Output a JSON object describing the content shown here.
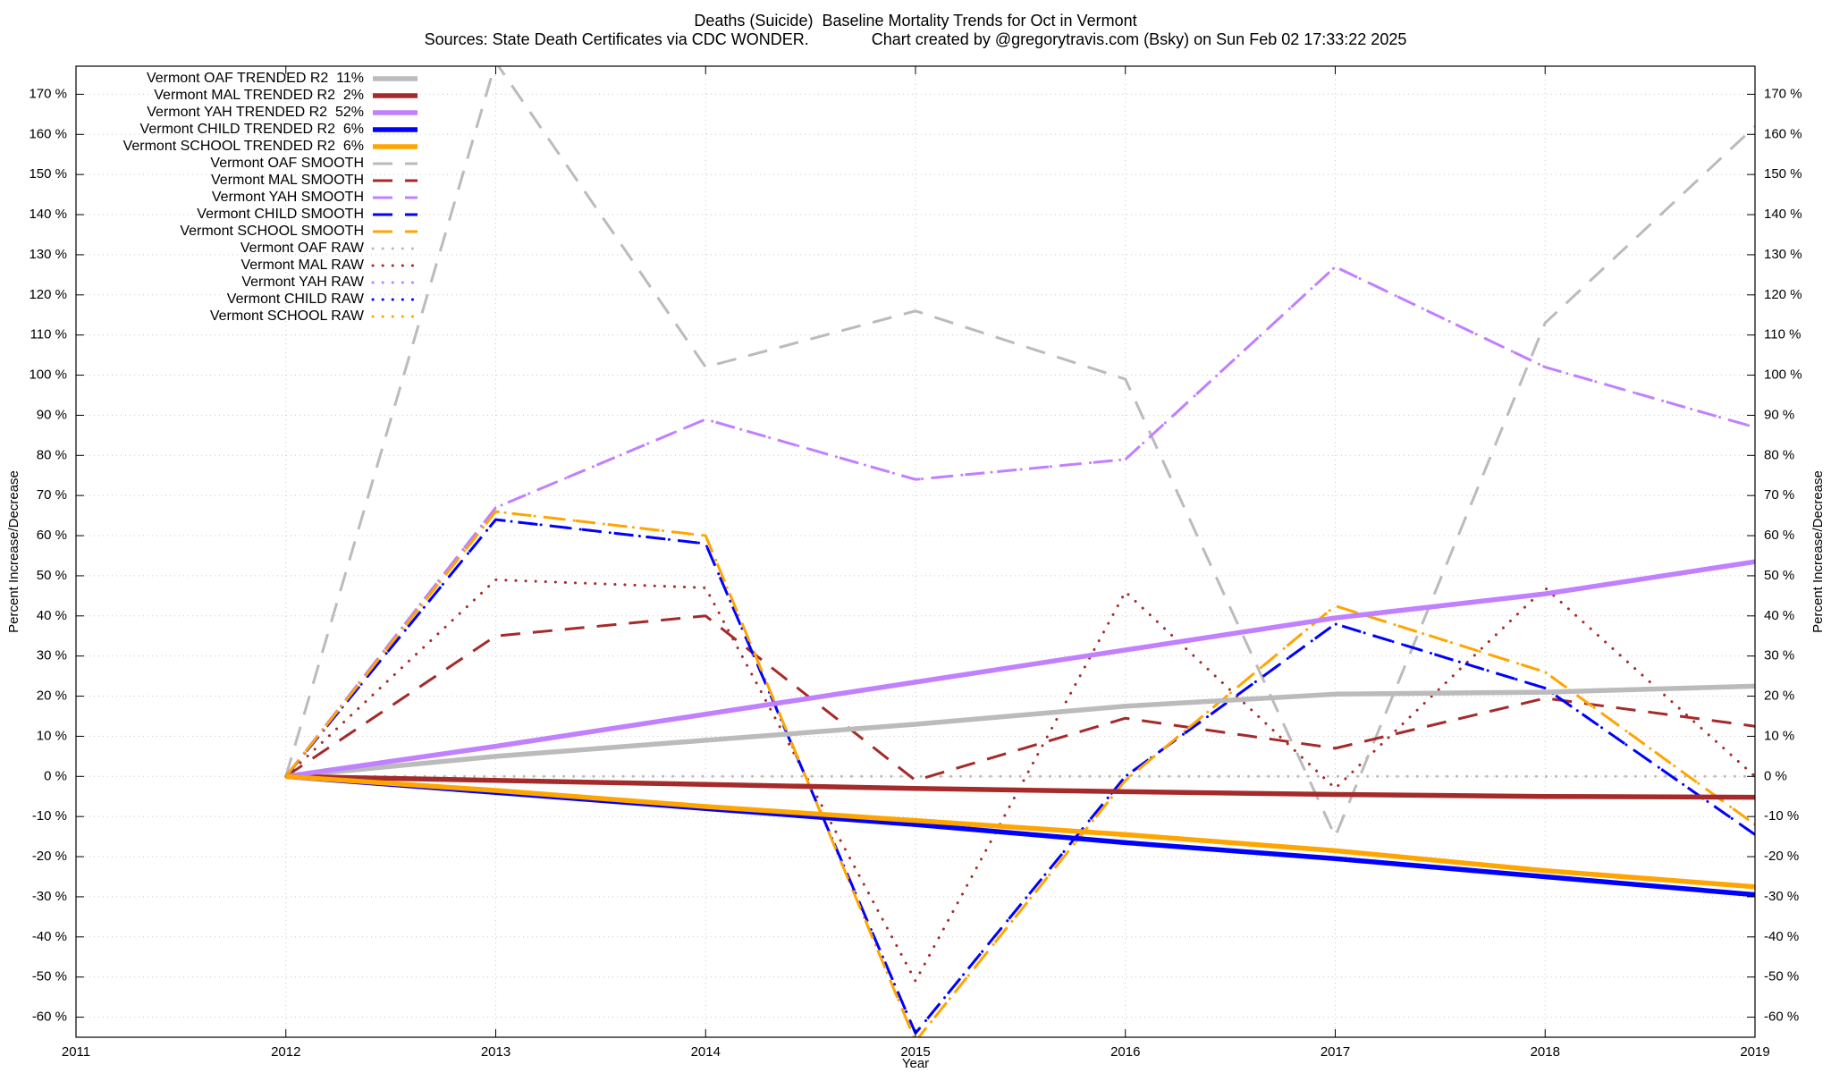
{
  "chart_data": {
    "type": "line",
    "title": "Deaths (Suicide)  Baseline Mortality Trends for Oct in Vermont",
    "subtitle": "Sources: State Death Certificates via CDC WONDER.              Chart created by @gregorytravis.com (Bsky) on Sun Feb 02 17:33:22 2025",
    "x_label": "Year",
    "y_label": "Percent Increase/Decrease",
    "y2_label": "Percent Increase/Decrease",
    "x": [
      2012,
      2013,
      2014,
      2015,
      2016,
      2017,
      2018,
      2019
    ],
    "xlim": [
      2011,
      2019
    ],
    "xticks": [
      2011,
      2012,
      2013,
      2014,
      2015,
      2016,
      2017,
      2018,
      2019
    ],
    "ylim": [
      -65,
      177
    ],
    "yticks": [
      {
        "value": -60,
        "label": "-60 %"
      },
      {
        "value": -50,
        "label": "-50 %"
      },
      {
        "value": -40,
        "label": "-40 %"
      },
      {
        "value": -30,
        "label": "-30 %"
      },
      {
        "value": -20,
        "label": "-20 %"
      },
      {
        "value": -10,
        "label": "-10 %"
      },
      {
        "value": 0,
        "label": "0 %"
      },
      {
        "value": 10,
        "label": "10 %"
      },
      {
        "value": 20,
        "label": "20 %"
      },
      {
        "value": 30,
        "label": "30 %"
      },
      {
        "value": 40,
        "label": "40 %"
      },
      {
        "value": 50,
        "label": "50 %"
      },
      {
        "value": 60,
        "label": "60 %"
      },
      {
        "value": 70,
        "label": "70 %"
      },
      {
        "value": 80,
        "label": "80 %"
      },
      {
        "value": 90,
        "label": "90 %"
      },
      {
        "value": 100,
        "label": "100 %"
      },
      {
        "value": 110,
        "label": "110 %"
      },
      {
        "value": 120,
        "label": "120 %"
      },
      {
        "value": 130,
        "label": "130 %"
      },
      {
        "value": 140,
        "label": "140 %"
      },
      {
        "value": 150,
        "label": "150 %"
      },
      {
        "value": 160,
        "label": "160 %"
      },
      {
        "value": 170,
        "label": "170 %"
      }
    ],
    "y2lim": [
      -65,
      177
    ],
    "y2ticks": [
      {
        "value": -60,
        "label": "-60 %"
      },
      {
        "value": -50,
        "label": "-50 %"
      },
      {
        "value": -40,
        "label": "-40 %"
      },
      {
        "value": -30,
        "label": "-30 %"
      },
      {
        "value": -20,
        "label": "-20 %"
      },
      {
        "value": -10,
        "label": "-10 %"
      },
      {
        "value": 0,
        "label": "0 %"
      },
      {
        "value": 10,
        "label": "10 %"
      },
      {
        "value": 20,
        "label": "20 %"
      },
      {
        "value": 30,
        "label": "30 %"
      },
      {
        "value": 40,
        "label": "40 %"
      },
      {
        "value": 50,
        "label": "50 %"
      },
      {
        "value": 60,
        "label": "60 %"
      },
      {
        "value": 70,
        "label": "70 %"
      },
      {
        "value": 80,
        "label": "80 %"
      },
      {
        "value": 90,
        "label": "90 %"
      },
      {
        "value": 100,
        "label": "100 %"
      },
      {
        "value": 110,
        "label": "110 %"
      },
      {
        "value": 120,
        "label": "120 %"
      },
      {
        "value": 130,
        "label": "130 %"
      },
      {
        "value": 140,
        "label": "140 %"
      },
      {
        "value": 150,
        "label": "150 %"
      },
      {
        "value": 160,
        "label": "160 %"
      },
      {
        "value": 170,
        "label": "170 %"
      }
    ],
    "grid": true,
    "legend": "top-left",
    "series": [
      {
        "name": "Vermont OAF TRENDED R2  11%",
        "color": "#bbbbbb",
        "style": "solid",
        "values": [
          0,
          5,
          9,
          13,
          17.5,
          20.5,
          21,
          22.5
        ]
      },
      {
        "name": "Vermont MAL TRENDED R2  2%",
        "color": "#a52a2a",
        "style": "solid",
        "values": [
          0,
          -1,
          -2,
          -3,
          -3.8,
          -4.5,
          -5,
          -5.2
        ]
      },
      {
        "name": "Vermont YAH TRENDED R2  52%",
        "color": "#c080ff",
        "style": "solid",
        "values": [
          0,
          7.5,
          15.5,
          23.5,
          31.5,
          39.5,
          45.5,
          53.5
        ]
      },
      {
        "name": "Vermont CHILD TRENDED R2  6%",
        "color": "#0000ff",
        "style": "solid",
        "values": [
          0,
          -4,
          -8,
          -12,
          -16.5,
          -20.5,
          -25,
          -29.5
        ]
      },
      {
        "name": "Vermont SCHOOL TRENDED R2  6%",
        "color": "#ffa500",
        "style": "solid",
        "values": [
          0,
          -3.5,
          -7.5,
          -11,
          -14.5,
          -18.5,
          -23.5,
          -27.5
        ]
      },
      {
        "name": "Vermont OAF SMOOTH",
        "color": "#bbbbbb",
        "style": "dashed",
        "values": [
          0,
          178,
          102,
          116,
          99,
          -15,
          113,
          162
        ]
      },
      {
        "name": "Vermont MAL SMOOTH",
        "color": "#a52a2a",
        "style": "dashed",
        "values": [
          0,
          35,
          40,
          -1,
          14.5,
          7,
          19.5,
          12.5
        ]
      },
      {
        "name": "Vermont YAH SMOOTH",
        "color": "#c080ff",
        "style": "dashed",
        "values": [
          0,
          67,
          89,
          74,
          79,
          127,
          102,
          87
        ]
      },
      {
        "name": "Vermont CHILD SMOOTH",
        "color": "#0000ff",
        "style": "dashed",
        "values": [
          0,
          64,
          58,
          -64,
          0,
          38,
          22,
          -14.5
        ]
      },
      {
        "name": "Vermont SCHOOL SMOOTH",
        "color": "#ffa500",
        "style": "dashed",
        "values": [
          0,
          66,
          60,
          -66,
          -1,
          42.5,
          26,
          -12
        ]
      },
      {
        "name": "Vermont OAF RAW",
        "color": "#bbbbbb",
        "style": "dotted",
        "values": [
          0,
          0,
          0,
          0,
          0,
          0,
          0,
          0
        ]
      },
      {
        "name": "Vermont MAL RAW",
        "color": "#a52a2a",
        "style": "dotted",
        "values": [
          0,
          49,
          47,
          -51,
          46,
          -3,
          47,
          0
        ]
      },
      {
        "name": "Vermont YAH RAW",
        "color": "#c080ff",
        "style": "dotted",
        "values": [
          0,
          67,
          89,
          74,
          79,
          127,
          102,
          87
        ]
      },
      {
        "name": "Vermont CHILD RAW",
        "color": "#0000ff",
        "style": "dotted",
        "values": [
          0,
          64,
          58,
          -64,
          0,
          38,
          22,
          -14.5
        ]
      },
      {
        "name": "Vermont SCHOOL RAW",
        "color": "#ffa500",
        "style": "dotted",
        "values": [
          0,
          66,
          60,
          -66,
          -1,
          42.5,
          26,
          -12
        ]
      }
    ]
  }
}
